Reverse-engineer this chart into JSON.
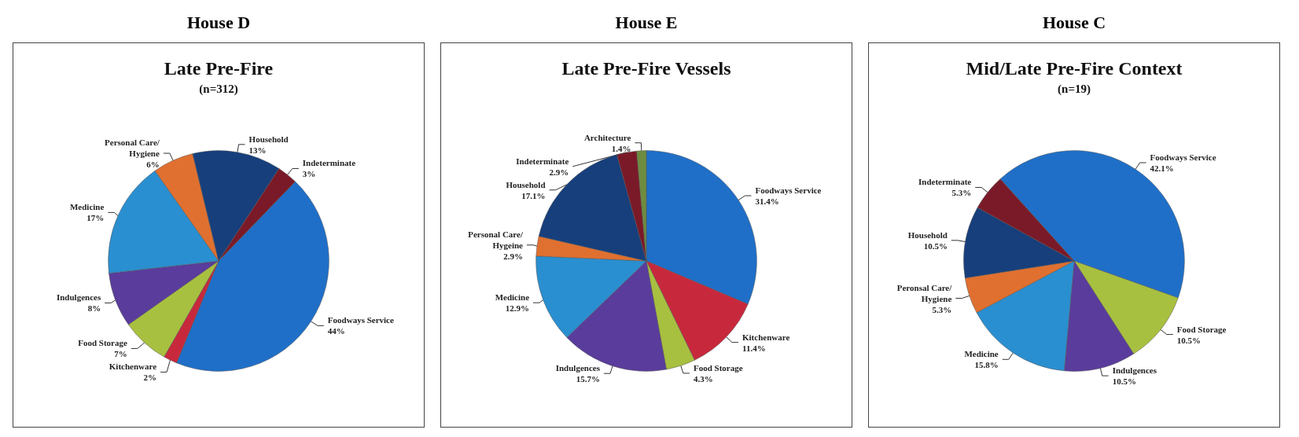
{
  "chart_data": [
    {
      "type": "pie",
      "title": "House D",
      "subtitle": "Late Pre-Fire",
      "annotations": [
        "(n=312)"
      ],
      "categories": [
        "Foodways Service",
        "Kitchenware",
        "Food Storage",
        "Indulgences",
        "Medicine",
        "Personal Care/Hygiene",
        "Household",
        "Indeterminate"
      ],
      "values": [
        44,
        2,
        7,
        8,
        17,
        6,
        13,
        3
      ],
      "value_labels": [
        "44%",
        "2%",
        "7%",
        "8%",
        "17%",
        "6%",
        "13%",
        "3%"
      ],
      "colors": [
        "#1f6fc8",
        "#c8283c",
        "#a8c040",
        "#5a3c9c",
        "#2a8fd0",
        "#e07030",
        "#163f7c",
        "#7a1a28"
      ],
      "legend": false
    },
    {
      "type": "pie",
      "title": "House E",
      "subtitle": "Late Pre-Fire Vessels",
      "categories": [
        "Foodways Service",
        "Kitchenware",
        "Food Storage",
        "Indulgences",
        "Medicine",
        "Personal Care/Hygeine",
        "Household",
        "Indeterminate",
        "Architecture"
      ],
      "values": [
        31.4,
        11.4,
        4.3,
        15.7,
        12.9,
        2.9,
        17.1,
        2.9,
        1.4
      ],
      "value_labels": [
        "31.4%",
        "11.4%",
        "4.3%",
        "15.7%",
        "12.9%",
        "2.9%",
        "17.1%",
        "2.9%",
        "1.4%"
      ],
      "colors": [
        "#1f6fc8",
        "#c8283c",
        "#a8c040",
        "#5a3c9c",
        "#2a8fd0",
        "#e07030",
        "#163f7c",
        "#7a1a28",
        "#6e8c40"
      ],
      "legend": false
    },
    {
      "type": "pie",
      "title": "House C",
      "subtitle": "Mid/Late Pre-Fire Context",
      "annotations": [
        "(n=19)"
      ],
      "categories": [
        "Foodways Service",
        "Food Storage",
        "Indulgences",
        "Medicine",
        "Peronsal Care/Hygiene",
        "Household",
        "Indeterminate"
      ],
      "values": [
        42.1,
        10.5,
        10.5,
        15.8,
        5.3,
        10.5,
        5.3
      ],
      "value_labels": [
        "42.1%",
        "10.5%",
        "10.5%",
        "15.8%",
        "5.3%",
        "10.5%",
        "5.3%"
      ],
      "colors": [
        "#1f6fc8",
        "#a8c040",
        "#5a3c9c",
        "#2a8fd0",
        "#e07030",
        "#163f7c",
        "#7a1a28"
      ],
      "legend": false
    }
  ]
}
